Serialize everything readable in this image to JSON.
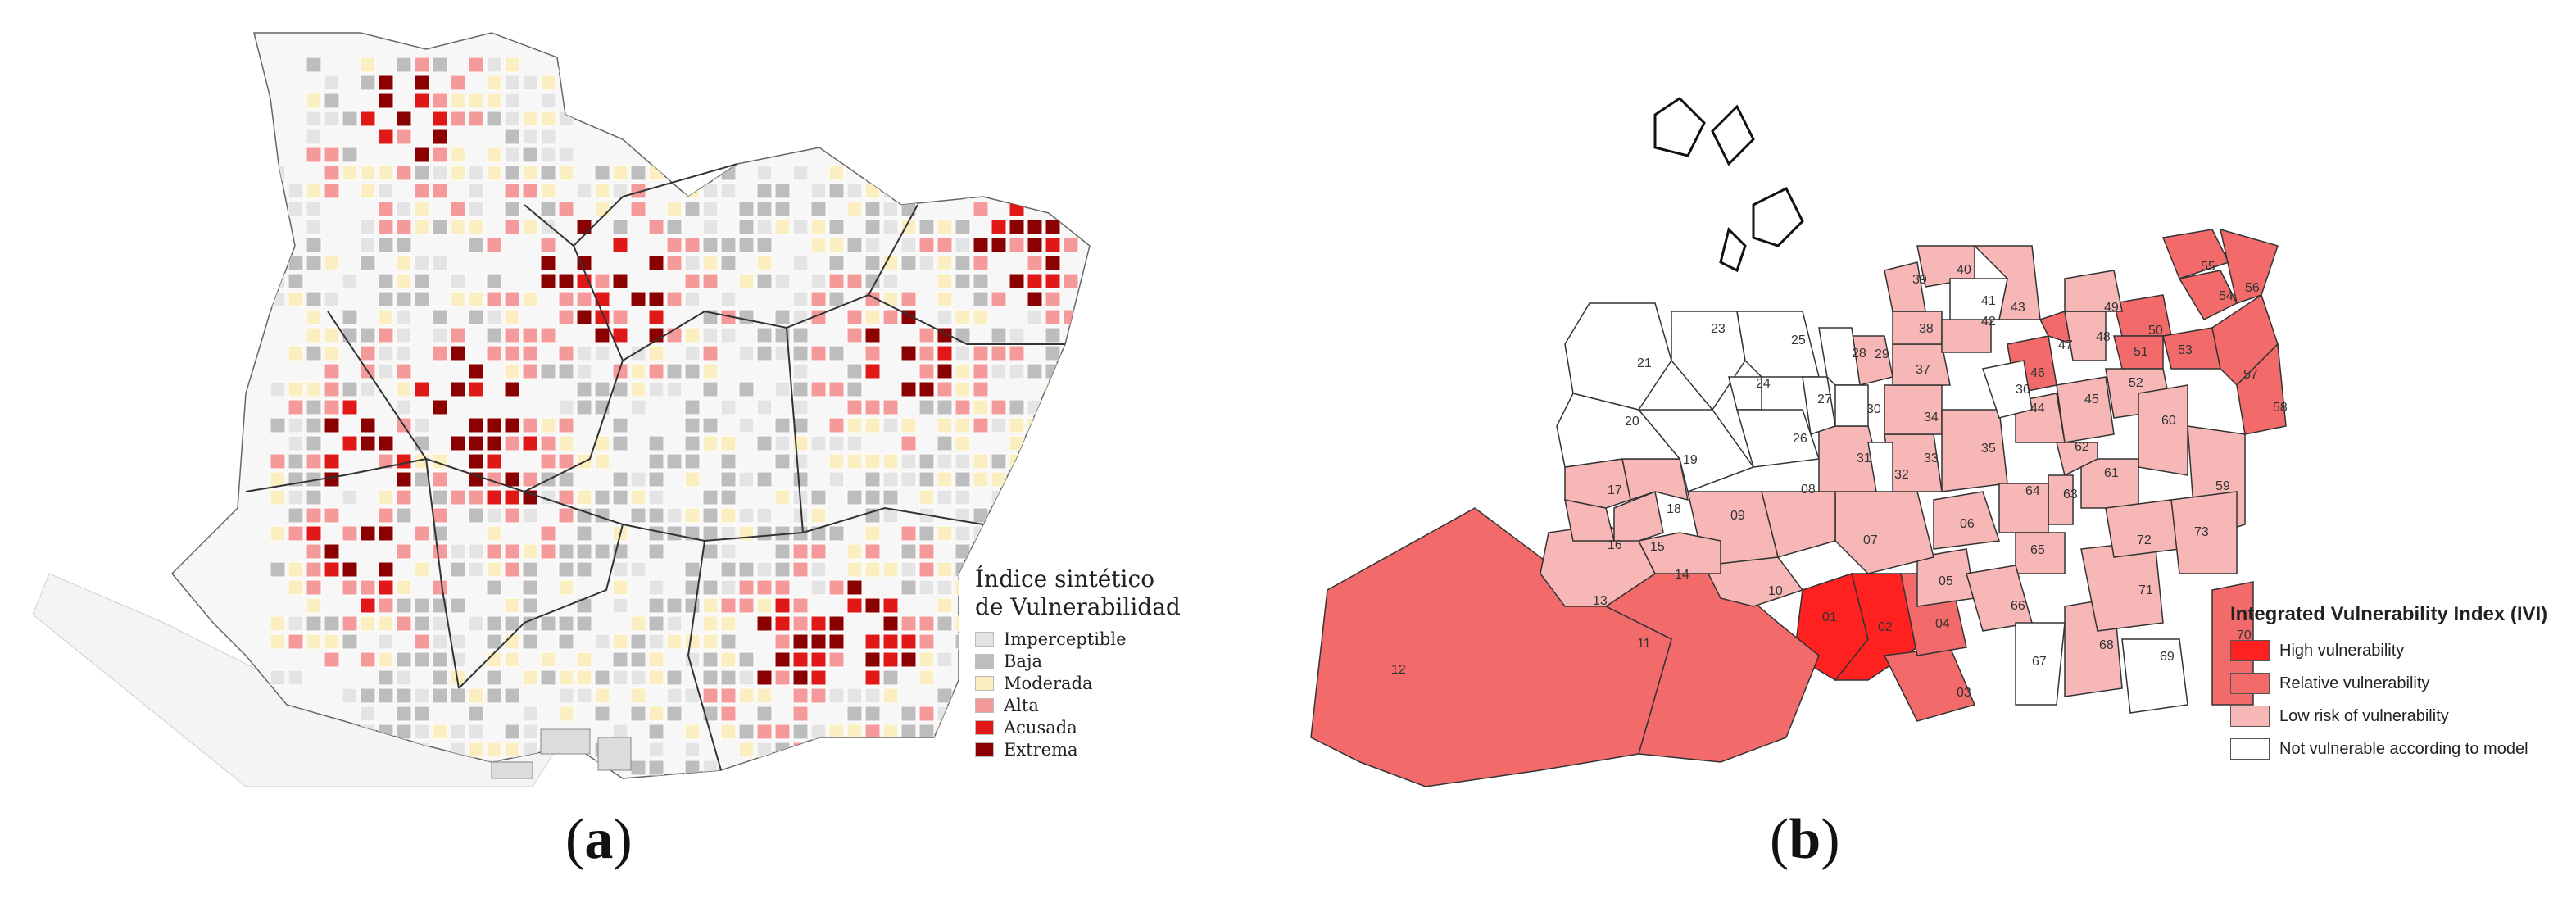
{
  "panel_a": {
    "caption_letter": "a",
    "legend": {
      "title_line1": "Índice sintético",
      "title_line2": "de Vulnerabilidad",
      "classes": [
        {
          "label": "Imperceptible",
          "color": "#e4e4e4"
        },
        {
          "label": "Baja",
          "color": "#bdbdbd"
        },
        {
          "label": "Moderada",
          "color": "#fbeec0"
        },
        {
          "label": "Alta",
          "color": "#f59a9a"
        },
        {
          "label": "Acusada",
          "color": "#e01818"
        },
        {
          "label": "Extrema",
          "color": "#8b0000"
        }
      ]
    }
  },
  "panel_b": {
    "caption_letter": "b",
    "legend": {
      "title": "Integrated Vulnerability Index (IVI)",
      "classes": [
        {
          "label": "High vulnerability",
          "color": "#ff2020"
        },
        {
          "label": "Relative vulnerability",
          "color": "#f26a6a"
        },
        {
          "label": "Low risk of vulnerability",
          "color": "#f7b7b7"
        },
        {
          "label": "Not vulnerable according to model",
          "color": "#ffffff"
        }
      ]
    },
    "districts": [
      {
        "id": "01",
        "cls": 0
      },
      {
        "id": "02",
        "cls": 0
      },
      {
        "id": "03",
        "cls": 1
      },
      {
        "id": "04",
        "cls": 1
      },
      {
        "id": "11",
        "cls": 1
      },
      {
        "id": "12",
        "cls": 1
      },
      {
        "id": "46",
        "cls": 1
      },
      {
        "id": "47",
        "cls": 1
      },
      {
        "id": "50",
        "cls": 1
      },
      {
        "id": "51",
        "cls": 1
      },
      {
        "id": "53",
        "cls": 1
      },
      {
        "id": "54",
        "cls": 1
      },
      {
        "id": "55",
        "cls": 1
      },
      {
        "id": "56",
        "cls": 1
      },
      {
        "id": "57",
        "cls": 1
      },
      {
        "id": "58",
        "cls": 1
      },
      {
        "id": "70",
        "cls": 1
      },
      {
        "id": "05",
        "cls": 2
      },
      {
        "id": "06",
        "cls": 2
      },
      {
        "id": "07",
        "cls": 2
      },
      {
        "id": "08",
        "cls": 2
      },
      {
        "id": "09",
        "cls": 2
      },
      {
        "id": "10",
        "cls": 2
      },
      {
        "id": "13",
        "cls": 2
      },
      {
        "id": "14",
        "cls": 2
      },
      {
        "id": "15",
        "cls": 2
      },
      {
        "id": "16",
        "cls": 2
      },
      {
        "id": "17",
        "cls": 2
      },
      {
        "id": "18",
        "cls": 2
      },
      {
        "id": "29",
        "cls": 2
      },
      {
        "id": "31",
        "cls": 2
      },
      {
        "id": "33",
        "cls": 2
      },
      {
        "id": "34",
        "cls": 2
      },
      {
        "id": "35",
        "cls": 2
      },
      {
        "id": "37",
        "cls": 2
      },
      {
        "id": "38",
        "cls": 2
      },
      {
        "id": "39",
        "cls": 2
      },
      {
        "id": "40",
        "cls": 2
      },
      {
        "id": "42",
        "cls": 2
      },
      {
        "id": "43",
        "cls": 2
      },
      {
        "id": "44",
        "cls": 2
      },
      {
        "id": "45",
        "cls": 2
      },
      {
        "id": "48",
        "cls": 2
      },
      {
        "id": "49",
        "cls": 2
      },
      {
        "id": "52",
        "cls": 2
      },
      {
        "id": "59",
        "cls": 2
      },
      {
        "id": "60",
        "cls": 2
      },
      {
        "id": "61",
        "cls": 2
      },
      {
        "id": "62",
        "cls": 2
      },
      {
        "id": "63",
        "cls": 2
      },
      {
        "id": "64",
        "cls": 2
      },
      {
        "id": "65",
        "cls": 2
      },
      {
        "id": "66",
        "cls": 2
      },
      {
        "id": "68",
        "cls": 2
      },
      {
        "id": "71",
        "cls": 2
      },
      {
        "id": "72",
        "cls": 2
      },
      {
        "id": "73",
        "cls": 2
      },
      {
        "id": "19",
        "cls": 3
      },
      {
        "id": "20",
        "cls": 3
      },
      {
        "id": "21",
        "cls": 3
      },
      {
        "id": "23",
        "cls": 3
      },
      {
        "id": "24",
        "cls": 3
      },
      {
        "id": "25",
        "cls": 3
      },
      {
        "id": "26",
        "cls": 3
      },
      {
        "id": "27",
        "cls": 3
      },
      {
        "id": "28",
        "cls": 3
      },
      {
        "id": "30",
        "cls": 3
      },
      {
        "id": "32",
        "cls": 3
      },
      {
        "id": "36",
        "cls": 3
      },
      {
        "id": "41",
        "cls": 3
      },
      {
        "id": "67",
        "cls": 3
      },
      {
        "id": "69",
        "cls": 3
      }
    ]
  }
}
